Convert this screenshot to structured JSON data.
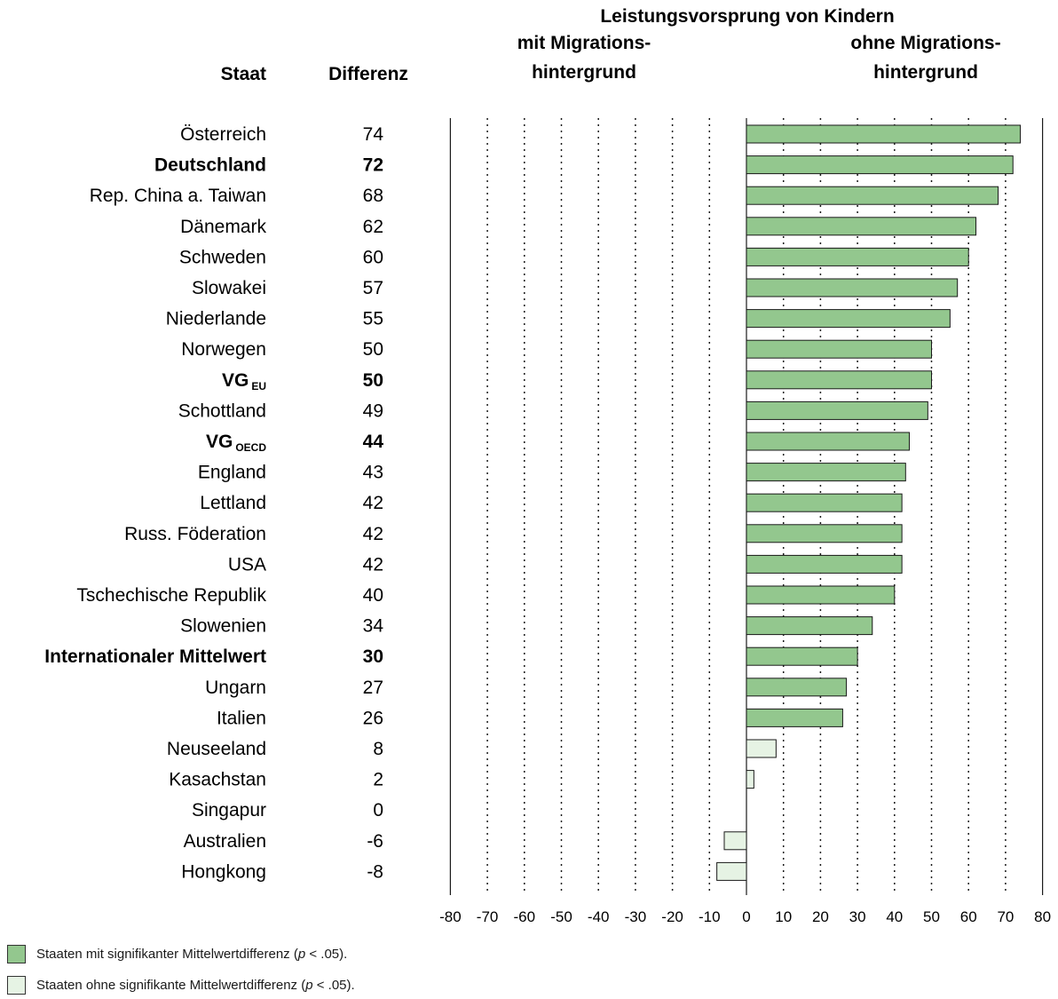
{
  "headers": {
    "staat": "Staat",
    "differenz": "Differenz",
    "title": "Leistungsvorsprung von Kindern",
    "left_line1": "mit Migrations-",
    "left_line2": "hintergrund",
    "right_line1": "ohne Migrations-",
    "right_line2": "hintergrund"
  },
  "colors": {
    "significant": "#93c78e",
    "not_significant": "#e6f3e4",
    "bar_border": "#1a1a1a"
  },
  "legend": [
    {
      "label_pre": "Staaten mit signifikanter Mittelwertdifferenz (",
      "p": "p",
      "label_post": " < .05).",
      "color": "#93c78e"
    },
    {
      "label_pre": "Staaten ohne signifikante Mittelwertdifferenz (",
      "p": "p",
      "label_post": " < .05).",
      "color": "#e6f3e4"
    }
  ],
  "chart_data": {
    "type": "bar",
    "orientation": "horizontal",
    "xlim": [
      -80,
      80
    ],
    "xticks": [
      -80,
      -70,
      -60,
      -50,
      -40,
      -30,
      -20,
      -10,
      0,
      10,
      20,
      30,
      40,
      50,
      60,
      70,
      80
    ],
    "grid": "dotted vertical",
    "rows": [
      {
        "name": "Österreich",
        "sub": "",
        "diff": "74",
        "value": 74,
        "significant": true,
        "bold": false
      },
      {
        "name": "Deutschland",
        "sub": "",
        "diff": "72",
        "value": 72,
        "significant": true,
        "bold": true
      },
      {
        "name": "Rep. China a. Taiwan",
        "sub": "",
        "diff": "68",
        "value": 68,
        "significant": true,
        "bold": false
      },
      {
        "name": "Dänemark",
        "sub": "",
        "diff": "62",
        "value": 62,
        "significant": true,
        "bold": false
      },
      {
        "name": "Schweden",
        "sub": "",
        "diff": "60",
        "value": 60,
        "significant": true,
        "bold": false
      },
      {
        "name": "Slowakei",
        "sub": "",
        "diff": "57",
        "value": 57,
        "significant": true,
        "bold": false
      },
      {
        "name": "Niederlande",
        "sub": "",
        "diff": "55",
        "value": 55,
        "significant": true,
        "bold": false
      },
      {
        "name": "Norwegen",
        "sub": "",
        "diff": "50",
        "value": 50,
        "significant": true,
        "bold": false
      },
      {
        "name": "VG",
        "sub": "EU",
        "diff": "50",
        "value": 50,
        "significant": true,
        "bold": true
      },
      {
        "name": "Schottland",
        "sub": "",
        "diff": "49",
        "value": 49,
        "significant": true,
        "bold": false
      },
      {
        "name": "VG",
        "sub": "OECD",
        "diff": "44",
        "value": 44,
        "significant": true,
        "bold": true
      },
      {
        "name": "England",
        "sub": "",
        "diff": "43",
        "value": 43,
        "significant": true,
        "bold": false
      },
      {
        "name": "Lettland",
        "sub": "",
        "diff": "42",
        "value": 42,
        "significant": true,
        "bold": false
      },
      {
        "name": "Russ. Föderation",
        "sub": "",
        "diff": "42",
        "value": 42,
        "significant": true,
        "bold": false
      },
      {
        "name": "USA",
        "sub": "",
        "diff": "42",
        "value": 42,
        "significant": true,
        "bold": false
      },
      {
        "name": "Tschechische Republik",
        "sub": "",
        "diff": "40",
        "value": 40,
        "significant": true,
        "bold": false
      },
      {
        "name": "Slowenien",
        "sub": "",
        "diff": "34",
        "value": 34,
        "significant": true,
        "bold": false
      },
      {
        "name": "Internationaler Mittelwert",
        "sub": "",
        "diff": "30",
        "value": 30,
        "significant": true,
        "bold": true
      },
      {
        "name": "Ungarn",
        "sub": "",
        "diff": "27",
        "value": 27,
        "significant": true,
        "bold": false
      },
      {
        "name": "Italien",
        "sub": "",
        "diff": "26",
        "value": 26,
        "significant": true,
        "bold": false
      },
      {
        "name": "Neuseeland",
        "sub": "",
        "diff": "8",
        "value": 8,
        "significant": false,
        "bold": false
      },
      {
        "name": "Kasachstan",
        "sub": "",
        "diff": "2",
        "value": 2,
        "significant": false,
        "bold": false
      },
      {
        "name": "Singapur",
        "sub": "",
        "diff": "0",
        "value": 0,
        "significant": false,
        "bold": false
      },
      {
        "name": "Australien",
        "sub": "",
        "diff": "-6",
        "value": -6,
        "significant": false,
        "bold": false
      },
      {
        "name": "Hongkong",
        "sub": "",
        "diff": "-8",
        "value": -8,
        "significant": false,
        "bold": false
      }
    ]
  }
}
